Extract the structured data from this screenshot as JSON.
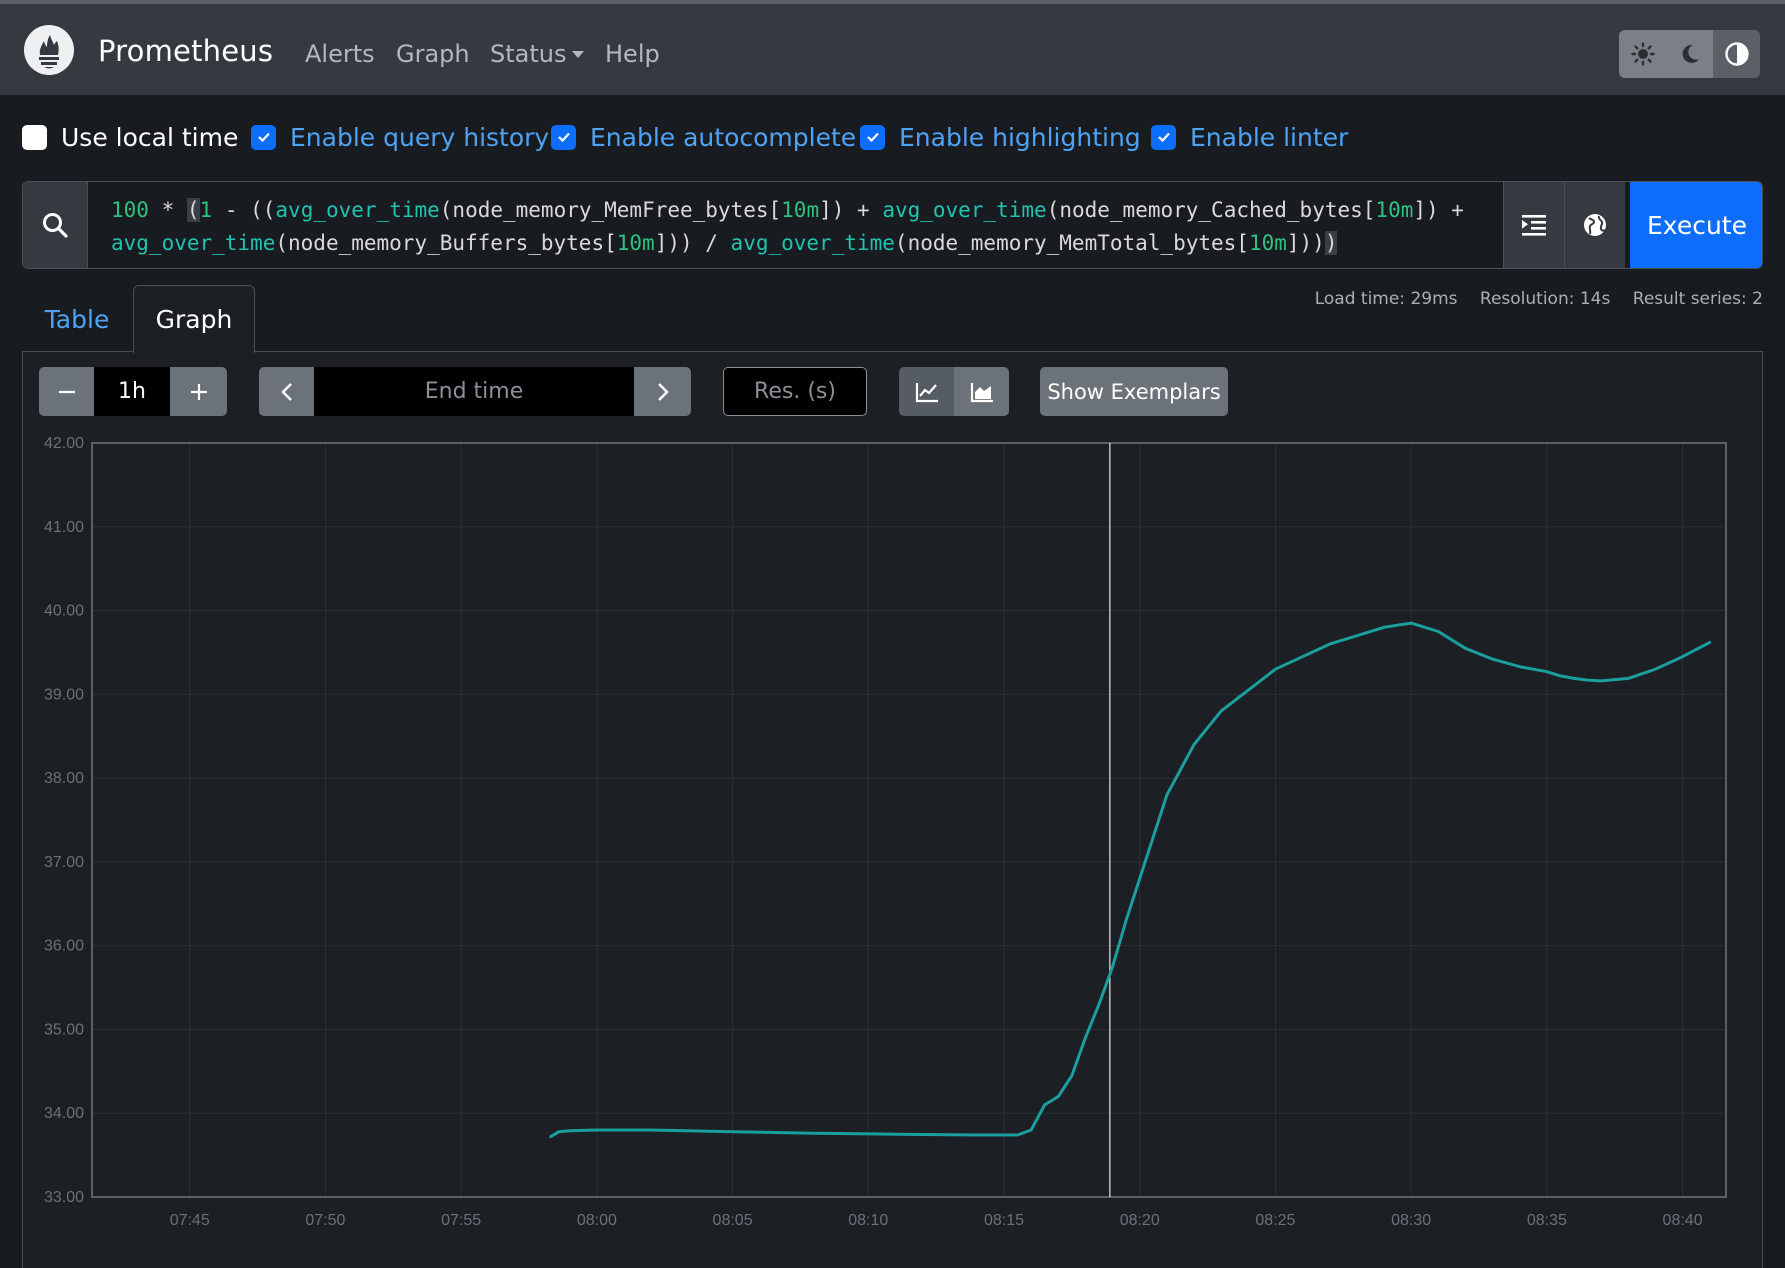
{
  "app": {
    "name": "Prometheus"
  },
  "nav": {
    "links": [
      "Alerts",
      "Graph",
      "Status",
      "Help"
    ],
    "theme_buttons": [
      "sun-icon",
      "moon-icon",
      "contrast-icon"
    ]
  },
  "options": [
    {
      "label": "Use local time",
      "checked": false
    },
    {
      "label": "Enable query history",
      "checked": true
    },
    {
      "label": "Enable autocomplete",
      "checked": true
    },
    {
      "label": "Enable highlighting",
      "checked": true
    },
    {
      "label": "Enable linter",
      "checked": true
    }
  ],
  "query": {
    "expression": "100 * (1 - ((avg_over_time(node_memory_MemFree_bytes[10m]) + avg_over_time(node_memory_Cached_bytes[10m]) + avg_over_time(node_memory_Buffers_bytes[10m])) / avg_over_time(node_memory_MemTotal_bytes[10m])))",
    "execute_label": "Execute"
  },
  "stats": {
    "load_time": "Load time: 29ms",
    "resolution": "Resolution: 14s",
    "result_series": "Result series: 2"
  },
  "tabs": {
    "table": "Table",
    "graph": "Graph",
    "active": "Graph"
  },
  "controls": {
    "range": "1h",
    "end_time_placeholder": "End time",
    "resolution_placeholder": "Res. (s)",
    "show_exemplars": "Show Exemplars"
  },
  "colors": {
    "accent": "#0d6efd",
    "series": "#1a9e9e",
    "navbar": "#343a40"
  },
  "chart_data": {
    "type": "line",
    "x_tick_labels": [
      "07:45",
      "07:50",
      "07:55",
      "08:00",
      "08:05",
      "08:10",
      "08:15",
      "08:20",
      "08:25",
      "08:30",
      "08:35",
      "08:40"
    ],
    "y_tick_labels": [
      "42.00",
      "41.00",
      "40.00",
      "39.00",
      "38.00",
      "37.00",
      "36.00",
      "35.00",
      "34.00",
      "33.00"
    ],
    "ylim": [
      33,
      42
    ],
    "xlim_minutes": [
      -3.6,
      56.6
    ],
    "x_unit": "minutes after 07:45",
    "hover_minute": 33.9,
    "grid": true,
    "series": [
      {
        "x": [
          13.3,
          13.6,
          14,
          15,
          17,
          20,
          23,
          26,
          29,
          30.5,
          31,
          31.5,
          32,
          32.5,
          33,
          33.5,
          34,
          34.5,
          35,
          35.5,
          36,
          37,
          38,
          40,
          42,
          44,
          45,
          46,
          47,
          48,
          49,
          50,
          50.5,
          51,
          51.5,
          52,
          53,
          54,
          55,
          56
        ],
        "y": [
          33.72,
          33.78,
          33.79,
          33.8,
          33.8,
          33.78,
          33.76,
          33.75,
          33.74,
          33.74,
          33.8,
          34.1,
          34.2,
          34.45,
          34.9,
          35.3,
          35.75,
          36.3,
          36.8,
          37.3,
          37.8,
          38.4,
          38.8,
          39.3,
          39.6,
          39.8,
          39.85,
          39.75,
          39.55,
          39.42,
          39.33,
          39.27,
          39.22,
          39.19,
          39.17,
          39.16,
          39.19,
          39.3,
          39.45,
          39.62
        ]
      }
    ]
  }
}
